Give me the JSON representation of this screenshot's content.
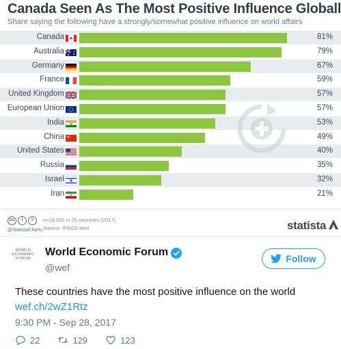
{
  "infographic": {
    "title": "Canada Seen As The Most Positive Influence Globally",
    "subtitle": "Share saying the following have a strongly/somewhat positive influence on world affairs",
    "footer": {
      "handle": "@StatistaCharts",
      "note": "n=18,055 in 25 countries (2017)",
      "source": "Source: IPSOS Mori",
      "brand": "statista"
    },
    "colors": {
      "bar": "#8dc63f",
      "row_bg": "#e9ecef",
      "title": "#333d47"
    }
  },
  "chart_data": {
    "type": "bar",
    "orientation": "horizontal",
    "categories": [
      "Canada",
      "Australia",
      "Germany",
      "France",
      "United Kingdom",
      "European Union",
      "India",
      "China",
      "United States",
      "Russia",
      "Israel",
      "Iran"
    ],
    "values": [
      81,
      79,
      67,
      59,
      57,
      57,
      53,
      49,
      40,
      35,
      32,
      21
    ],
    "value_labels": [
      "81%",
      "79%",
      "67%",
      "59%",
      "57%",
      "57%",
      "53%",
      "49%",
      "40%",
      "35%",
      "32%",
      "21%"
    ],
    "flags": [
      "canada-flag-icon",
      "australia-flag-icon",
      "germany-flag-icon",
      "france-flag-icon",
      "uk-flag-icon",
      "eu-flag-icon",
      "india-flag-icon",
      "china-flag-icon",
      "usa-flag-icon",
      "russia-flag-icon",
      "israel-flag-icon",
      "iran-flag-icon"
    ],
    "title": "Canada Seen As The Most Positive Influence Globally",
    "xlim": [
      0,
      100
    ],
    "grid": false
  },
  "tweet": {
    "author_name": "World Economic Forum",
    "author_handle": "@wef",
    "avatar_lines": [
      "WORLD",
      "ECONOMIC",
      "FORUM"
    ],
    "follow_label": "Follow",
    "text": "These countries have the most positive influence on the world",
    "link": "wef.ch/2wZ1Rtz",
    "timestamp": "9:30 PM - Sep 28, 2017",
    "replies": "22",
    "retweets": "129",
    "likes": "123",
    "accent": "#1da1f2"
  }
}
